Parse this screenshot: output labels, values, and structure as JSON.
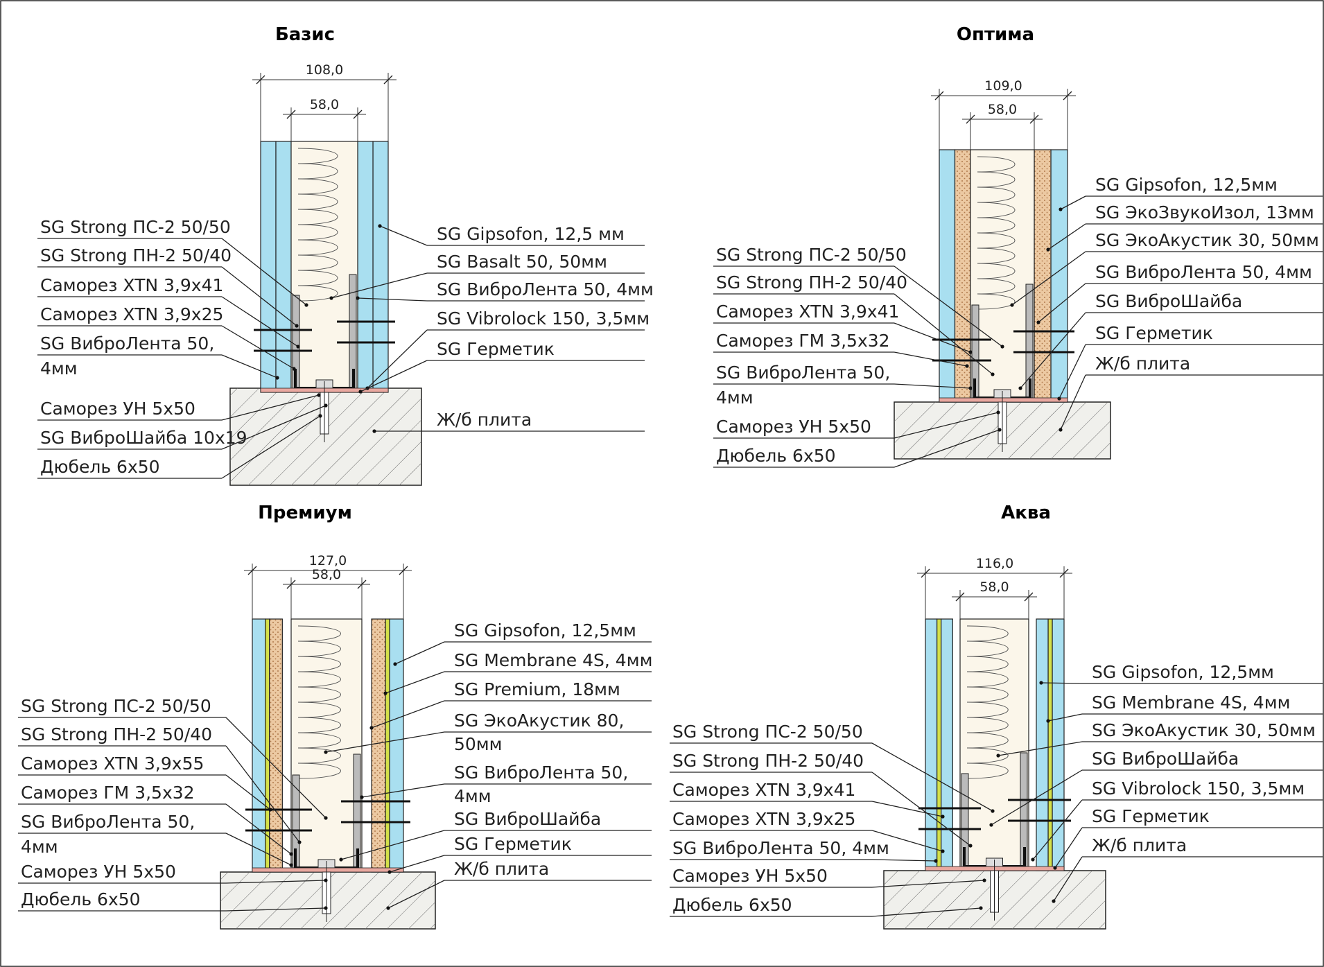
{
  "colors": {
    "board": "#a9dff0",
    "wool": "#fbf6ea",
    "eco": "#ecc9a2",
    "membrane": "#d4e04a",
    "slab": "#f0f0ec",
    "tape": "#e9a8a0",
    "steel": "#111111"
  },
  "panels": [
    {
      "title": "Базис",
      "dim_total": "108,0",
      "dim_inner": "58,0",
      "labels_left": [
        "SG Strong ПС-2 50/50",
        "SG Strong ПН-2 50/40",
        "Саморез XTN 3,9x41",
        "Саморез XTN 3,9x25",
        "SG ВиброЛента 50,",
        "4мм",
        "Саморез УН 5x50",
        "SG ВиброШайба 10x19",
        "Дюбель 6x50"
      ],
      "labels_right": [
        "SG Gipsofon, 12,5 мм",
        "SG Basalt 50, 50мм",
        "SG ВиброЛента 50, 4мм",
        "SG Vibrolock 150, 3,5мм",
        "SG Герметик",
        "Ж/б плита"
      ]
    },
    {
      "title": "Оптима",
      "dim_total": "109,0",
      "dim_inner": "58,0",
      "labels_left": [
        "SG Strong ПС-2 50/50",
        "SG Strong ПН-2 50/40",
        "Саморез XTN 3,9x41",
        "Саморез ГМ 3,5x32",
        "SG ВиброЛента 50,",
        "4мм",
        "Саморез УН 5x50",
        "Дюбель 6x50"
      ],
      "labels_right": [
        "SG Gipsofon, 12,5мм",
        "SG ЭкоЗвукоИзол, 13мм",
        "SG ЭкоАкустик 30, 50мм",
        "SG ВиброЛента 50, 4мм",
        "SG ВиброШайба",
        "SG Герметик",
        "Ж/б плита"
      ]
    },
    {
      "title": "Премиум",
      "dim_total": "127,0",
      "dim_inner": "58,0",
      "labels_left": [
        "SG Strong ПС-2 50/50",
        "SG Strong ПН-2 50/40",
        "Саморез XTN 3,9x55",
        "Саморез ГМ 3,5x32",
        "SG ВиброЛента 50,",
        "4мм",
        "Саморез УН 5x50",
        "Дюбель 6x50"
      ],
      "labels_right": [
        "SG Gipsofon, 12,5мм",
        "SG Membrane 4S, 4мм",
        "SG Premium, 18мм",
        "SG ЭкоАкустик 80,",
        "50мм",
        "SG ВиброЛента 50,",
        "4мм",
        "SG ВиброШайба",
        "SG Герметик",
        "Ж/б плита"
      ]
    },
    {
      "title": "Аква",
      "dim_total": "116,0",
      "dim_inner": "58,0",
      "labels_left": [
        "SG Strong ПС-2 50/50",
        "SG Strong ПН-2 50/40",
        "Саморез XTN 3,9x41",
        "Саморез XTN 3,9x25",
        "SG ВиброЛента 50, 4мм",
        "Саморез УН 5x50",
        "Дюбель 6x50"
      ],
      "labels_right": [
        "SG Gipsofon, 12,5мм",
        "SG Membrane 4S, 4мм",
        "SG ЭкоАкустик 30, 50мм",
        "SG ВиброШайба",
        "SG Vibrolock 150, 3,5мм",
        "SG Герметик",
        "Ж/б плита"
      ]
    }
  ]
}
